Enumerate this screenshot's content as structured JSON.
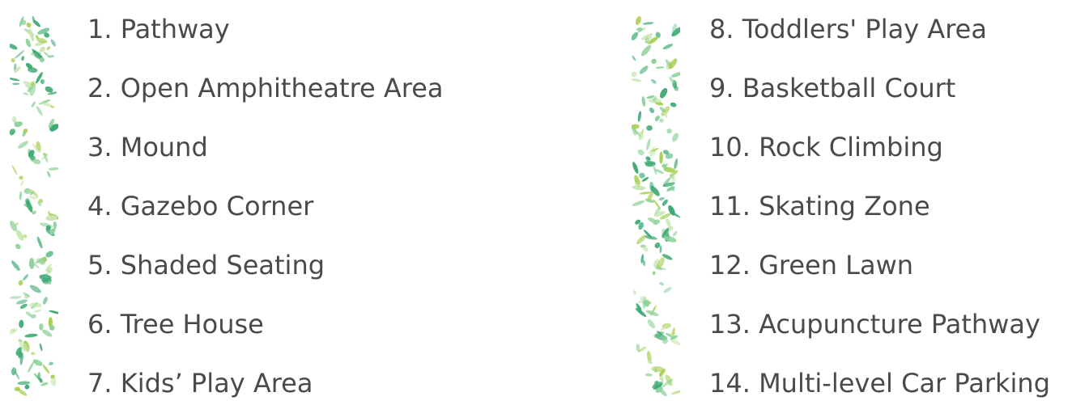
{
  "palette": {
    "text": "#4a4a4a",
    "leaf_light": "#c9e6b3",
    "leaf_mid": "#8fd19b",
    "leaf_dark": "#3faa74",
    "leaf_lime": "#a6cf52"
  },
  "decor": {
    "icon": "leaf-pattern-strip"
  },
  "left_list": {
    "items": [
      "1. Pathway",
      "2. Open Amphitheatre Area",
      "3. Mound",
      "4. Gazebo Corner",
      "5. Shaded Seating",
      "6. Tree House",
      "7. Kids’ Play Area"
    ]
  },
  "right_list": {
    "items": [
      "8. Toddlers' Play Area",
      "9.  Basketball Court",
      "10. Rock Climbing",
      "11. Skating Zone",
      "12. Green Lawn",
      "13. Acupuncture Pathway",
      "14. Multi-level Car Parking"
    ]
  }
}
